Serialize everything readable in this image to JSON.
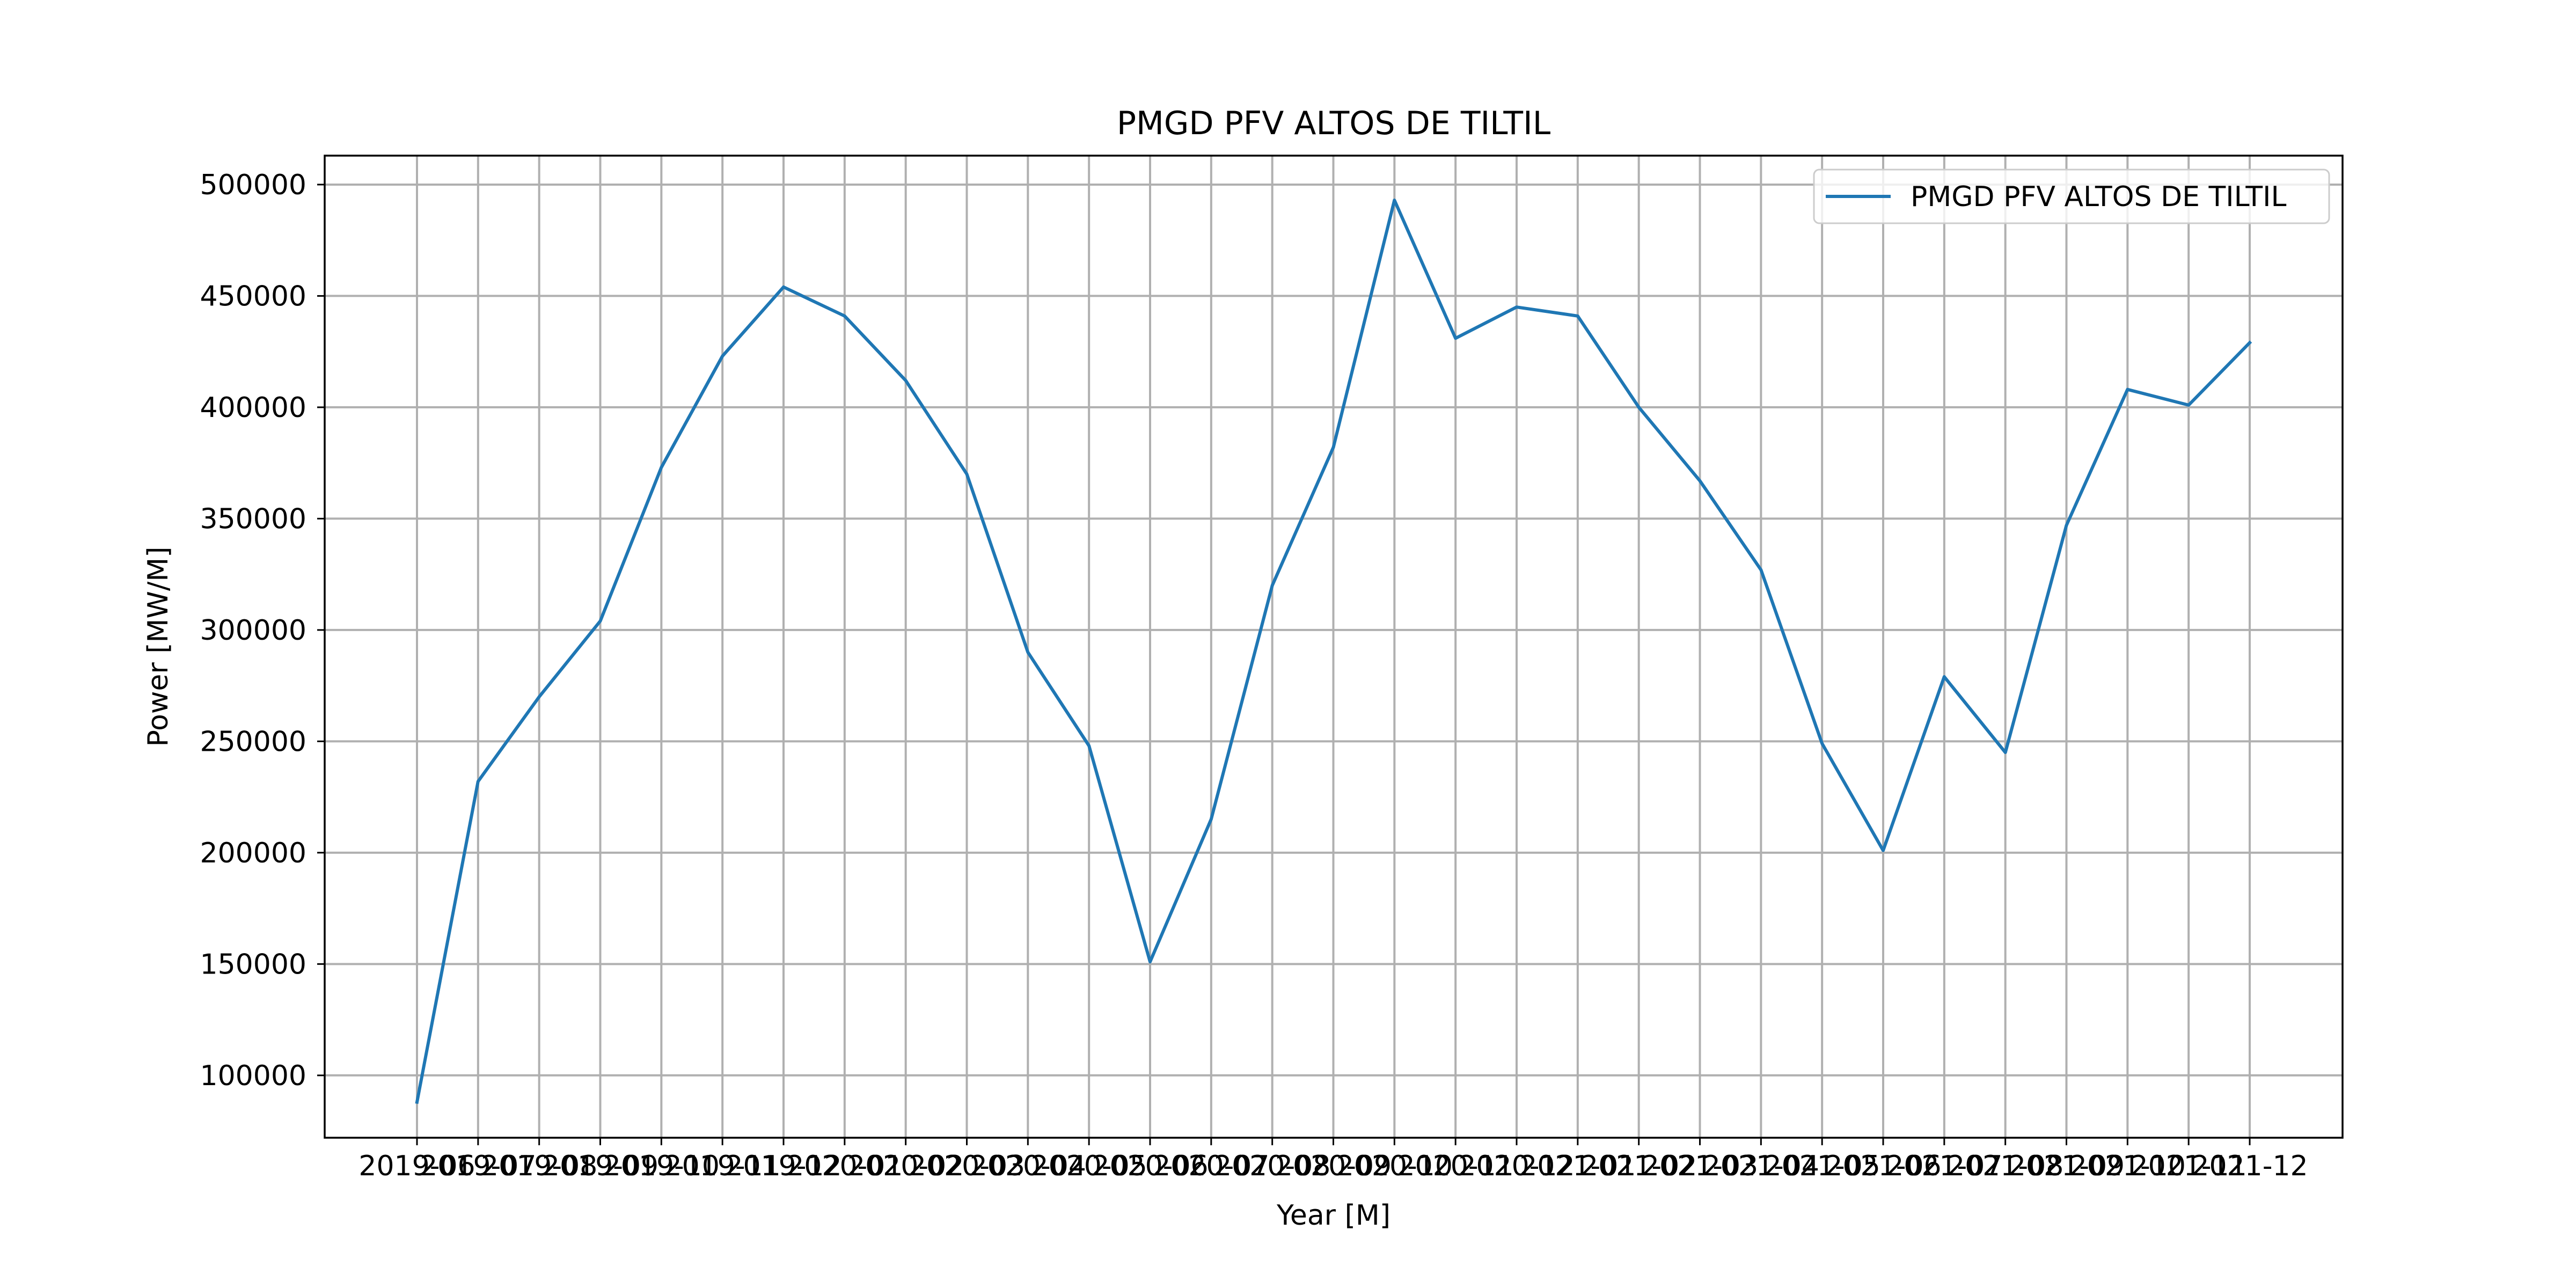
{
  "chart_data": {
    "type": "line",
    "title": "PMGD PFV ALTOS DE TILTIL",
    "xlabel": "Year [M]",
    "ylabel": "Power [MW/M]",
    "x": [
      "2019-06",
      "2019-07",
      "2019-08",
      "2019-09",
      "2019-10",
      "2019-11",
      "2019-12",
      "2020-01",
      "2020-02",
      "2020-03",
      "2020-04",
      "2020-05",
      "2020-06",
      "2020-07",
      "2020-08",
      "2020-09",
      "2020-10",
      "2020-11",
      "2020-12",
      "2021-01",
      "2021-02",
      "2021-03",
      "2021-04",
      "2021-05",
      "2021-06",
      "2021-07",
      "2021-08",
      "2021-09",
      "2021-10",
      "2021-11",
      "2021-12"
    ],
    "series": [
      {
        "name": "PMGD PFV ALTOS DE TILTIL",
        "values": [
          88000,
          232000,
          270000,
          304000,
          373000,
          423000,
          454000,
          441000,
          412000,
          370000,
          290000,
          248000,
          151000,
          215000,
          320000,
          382000,
          493000,
          431000,
          445000,
          441000,
          400000,
          367000,
          327000,
          249000,
          201000,
          279000,
          245000,
          347000,
          408000,
          401000,
          429000
        ]
      }
    ],
    "yticks": [
      100000,
      150000,
      200000,
      250000,
      300000,
      350000,
      400000,
      450000,
      500000
    ],
    "ylim": [
      72000,
      513000
    ],
    "grid": true,
    "legend_position": "upper right",
    "colors": {
      "series": "#1f77b4"
    }
  }
}
